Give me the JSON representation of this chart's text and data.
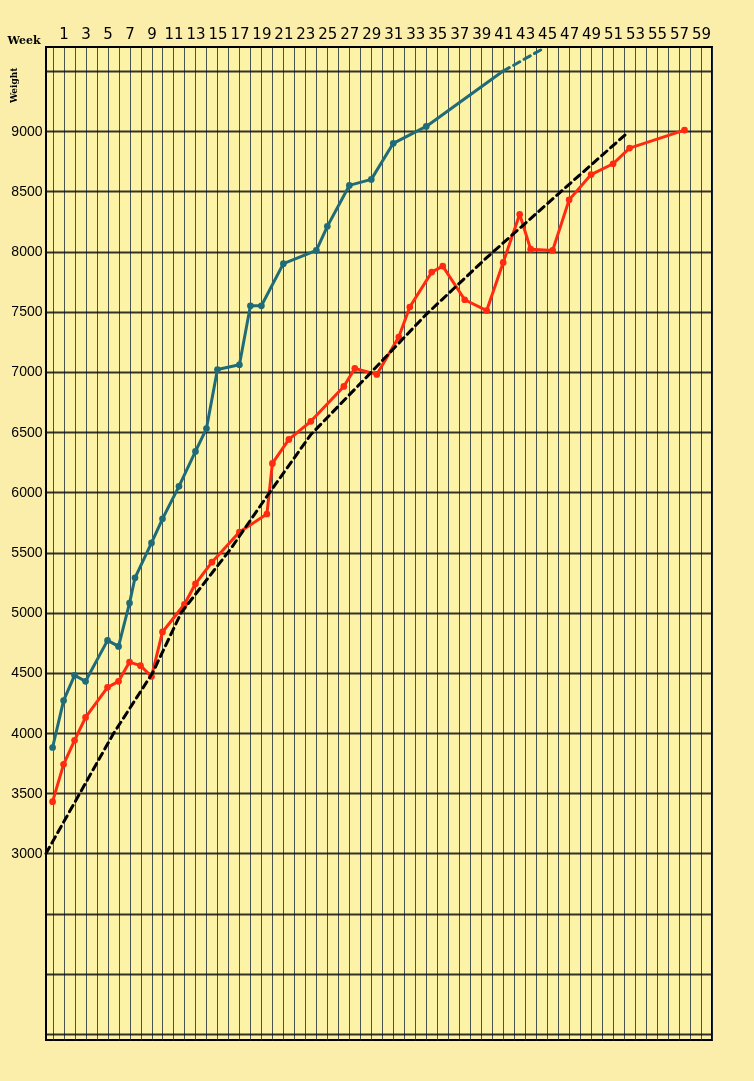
{
  "chart_data": {
    "type": "line",
    "xlabel": "Week",
    "ylabel": "Weight",
    "xlim": [
      -0.6,
      60
    ],
    "ylim": [
      1450,
      9700
    ],
    "xticks": [
      {
        "value": 0,
        "label": null
      },
      1,
      {
        "value": 2,
        "label": null
      },
      3,
      {
        "value": 4,
        "label": null
      },
      5,
      {
        "value": 6,
        "label": null
      },
      7,
      {
        "value": 8,
        "label": null
      },
      9,
      {
        "value": 10,
        "label": null
      },
      11,
      {
        "value": 12,
        "label": null
      },
      13,
      {
        "value": 14,
        "label": null
      },
      15,
      {
        "value": 16,
        "label": null
      },
      17,
      {
        "value": 18,
        "label": null
      },
      19,
      {
        "value": 20,
        "label": null
      },
      21,
      {
        "value": 22,
        "label": null
      },
      23,
      {
        "value": 24,
        "label": null
      },
      25,
      {
        "value": 26,
        "label": null
      },
      27,
      {
        "value": 28,
        "label": null
      },
      29,
      {
        "value": 30,
        "label": null
      },
      31,
      {
        "value": 32,
        "label": null
      },
      33,
      {
        "value": 34,
        "label": null
      },
      35,
      {
        "value": 36,
        "label": null
      },
      37,
      {
        "value": 38,
        "label": null
      },
      39,
      {
        "value": 40,
        "label": null
      },
      41,
      {
        "value": 42,
        "label": null
      },
      43,
      {
        "value": 44,
        "label": null
      },
      45,
      {
        "value": 46,
        "label": null
      },
      47,
      {
        "value": 48,
        "label": null
      },
      49,
      {
        "value": 50,
        "label": null
      },
      51,
      {
        "value": 52,
        "label": null
      },
      53,
      {
        "value": 54,
        "label": null
      },
      55,
      {
        "value": 56,
        "label": null
      },
      57,
      {
        "value": 58,
        "label": null
      },
      59,
      {
        "value": 60,
        "label": null
      }
    ],
    "yticks": [
      {
        "value": 1500,
        "label": null
      },
      {
        "value": 2000,
        "label": null
      },
      {
        "value": 2500,
        "label": null
      },
      3000,
      3500,
      4000,
      4500,
      5000,
      5500,
      6000,
      6500,
      7000,
      7500,
      8000,
      8500,
      9000,
      {
        "value": 9500,
        "label": null
      }
    ],
    "grid": true,
    "series": [
      {
        "color": "#1f6b78",
        "marker": "circle",
        "line_style": "solid",
        "x": [
          0,
          1,
          2,
          3,
          5,
          6,
          7,
          7.5,
          9,
          10,
          11.5,
          13,
          14,
          15,
          17,
          18,
          19,
          21,
          24,
          25,
          27,
          29,
          31,
          34
        ],
        "values": [
          3880,
          4270,
          4480,
          4430,
          4770,
          4720,
          5080,
          5290,
          5580,
          5780,
          6050,
          6340,
          6530,
          7020,
          7060,
          7550,
          7550,
          7900,
          8010,
          8210,
          8550,
          8600,
          8900,
          9040
        ]
      },
      {
        "color": "#1f6b78",
        "marker": "none",
        "line_style": "solid",
        "x": [
          34,
          41
        ],
        "values": [
          9040,
          9500
        ]
      },
      {
        "color": "#1f6b78",
        "marker": "none",
        "line_style": "dashed",
        "x": [
          41,
          44.5
        ],
        "values": [
          9500,
          9680
        ]
      },
      {
        "color": "#ff2a10",
        "marker": "circle",
        "line_style": "solid",
        "x": [
          0,
          1,
          2,
          3,
          5,
          6,
          7,
          8,
          9,
          10,
          12,
          13,
          14.5,
          17,
          19.5,
          20,
          21.5,
          23.5,
          26.5,
          27.5,
          29.5,
          31.5,
          32.5,
          34.5,
          35.5,
          37.5,
          39.5,
          41,
          42.5,
          43.5,
          45.5,
          47,
          49,
          51,
          52.5,
          57.5
        ],
        "values": [
          3430,
          3740,
          3940,
          4130,
          4380,
          4430,
          4590,
          4560,
          4470,
          4840,
          5070,
          5240,
          5420,
          5670,
          5820,
          6240,
          6440,
          6590,
          6880,
          7030,
          6980,
          7290,
          7540,
          7830,
          7880,
          7600,
          7510,
          7910,
          8310,
          8020,
          8010,
          8430,
          8640,
          8730,
          8860,
          9010
        ]
      },
      {
        "color": "#000000",
        "marker": "none",
        "line_style": "dashed",
        "x": [
          -0.6,
          5.5,
          9.1,
          11.7,
          16.2,
          19.6,
          23.5,
          28.7,
          33.9,
          39.5,
          45.9,
          52.1
        ],
        "values": [
          3000,
          3990,
          4500,
          5000,
          5530,
          5980,
          6480,
          6970,
          7470,
          7950,
          8470,
          8970
        ]
      }
    ]
  }
}
